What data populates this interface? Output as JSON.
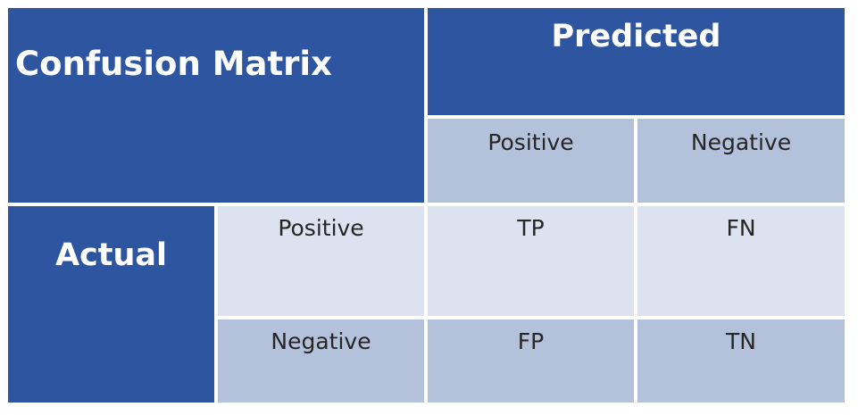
{
  "matrix": {
    "title": "Confusion Matrix",
    "predicted_label": "Predicted",
    "actual_label": "Actual",
    "predicted_classes": [
      "Positive",
      "Negative"
    ],
    "actual_classes": [
      "Positive",
      "Negative"
    ],
    "cells": [
      [
        "TP",
        "FN"
      ],
      [
        "FP",
        "TN"
      ]
    ]
  },
  "colors": {
    "header_dark": "#2e55a0",
    "header_light": "#b4c1da",
    "row_light": "#dce2ef",
    "text_dark": "#262626",
    "text_light": "#ffffff"
  }
}
